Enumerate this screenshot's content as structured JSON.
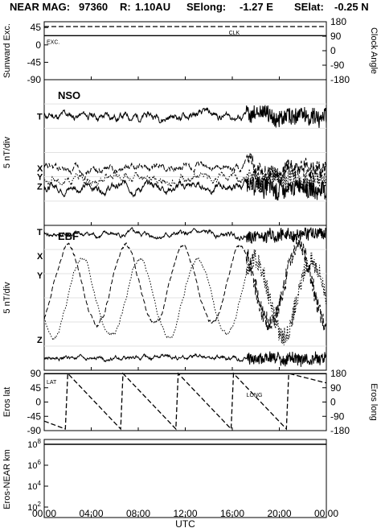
{
  "header": {
    "mission": "NEAR MAG:",
    "date_code": "97360",
    "r_label": "R:",
    "r_value": "1.10AU",
    "selong_label": "SElong:",
    "selong_value": "-1.27 E",
    "selat_label": "SElat:",
    "selat_value": "-0.25 N"
  },
  "x_axis": {
    "label": "UTC",
    "range_hours": [
      0,
      24
    ],
    "tick_labels": [
      "00:00",
      "04:00",
      "08:00",
      "12:00",
      "16:00",
      "20:00",
      "00:00"
    ]
  },
  "chart_data": [
    {
      "type": "line",
      "panel": "sunward-clock",
      "ylabel_left": "Sunward Exc.",
      "ylabel_right": "Clock Angle",
      "yticks_left": [
        "45",
        "0",
        "-45",
        "-90"
      ],
      "yticks_right": [
        "180",
        "90",
        "0",
        "-90",
        "-180"
      ],
      "ylim_left": [
        -90,
        60
      ],
      "ylim_right": [
        -180,
        180
      ],
      "series": [
        {
          "name": "EXC.",
          "style": "solid",
          "values": [
            [
              0,
              24
            ],
            [
              24,
              24
            ]
          ]
        },
        {
          "name": "CLK",
          "style": "dashed",
          "values": [
            [
              0,
              150
            ],
            [
              24,
              150
            ]
          ]
        }
      ]
    },
    {
      "type": "line",
      "panel": "NSO",
      "title": "NSO",
      "ylabel": "5 nT/div",
      "component_labels": [
        "T",
        "X",
        "Y",
        "Z"
      ],
      "series": [
        {
          "name": "T",
          "style": "solid",
          "level_div": 4.5
        },
        {
          "name": "X",
          "style": "dashed",
          "level_div": 2.3
        },
        {
          "name": "Y",
          "style": "dotted",
          "level_div": 1.9
        },
        {
          "name": "Z",
          "style": "solid",
          "level_div": 1.6
        }
      ]
    },
    {
      "type": "line",
      "panel": "EBF",
      "title": "EBF",
      "ylabel": "5 nT/div",
      "component_labels": [
        "T",
        "X",
        "Y",
        "Z"
      ],
      "series": [
        {
          "name": "T",
          "style": "solid"
        },
        {
          "name": "X",
          "style": "dashed"
        },
        {
          "name": "Y",
          "style": "dotted"
        },
        {
          "name": "Z",
          "style": "solid"
        }
      ]
    },
    {
      "type": "line",
      "panel": "eros-lat-long",
      "ylabel_left": "Eros lat",
      "ylabel_right": "Eros long",
      "yticks_left": [
        "90",
        "45",
        "0",
        "-45",
        "-90"
      ],
      "yticks_right": [
        "180",
        "90",
        "0",
        "-90",
        "-180"
      ],
      "ylim_left": [
        -90,
        90
      ],
      "ylim_right": [
        -180,
        180
      ],
      "series": [
        {
          "name": "LAT",
          "style": "solid",
          "values": [
            [
              0,
              89
            ],
            [
              24,
              89
            ]
          ]
        },
        {
          "name": "LONG",
          "style": "dashed",
          "values": [
            [
              0,
              -120
            ],
            [
              1.8,
              -170
            ],
            [
              2.0,
              180
            ],
            [
              6.5,
              -170
            ],
            [
              6.7,
              180
            ],
            [
              11.2,
              -170
            ],
            [
              11.4,
              180
            ],
            [
              15.9,
              -170
            ],
            [
              16.1,
              180
            ],
            [
              20.6,
              -170
            ],
            [
              20.8,
              180
            ],
            [
              24,
              120
            ]
          ]
        }
      ]
    },
    {
      "type": "line",
      "panel": "eros-near-range",
      "ylabel": "Eros-NEAR km",
      "yscale": "log",
      "yticks": [
        "10^8",
        "10^6",
        "10^4",
        "10^2"
      ],
      "ylim": [
        10,
        100000000.0
      ],
      "series": [
        {
          "name": "range",
          "style": "solid",
          "values": [
            [
              0,
              100000000.0
            ],
            [
              24,
              100000000.0
            ]
          ]
        }
      ]
    }
  ]
}
